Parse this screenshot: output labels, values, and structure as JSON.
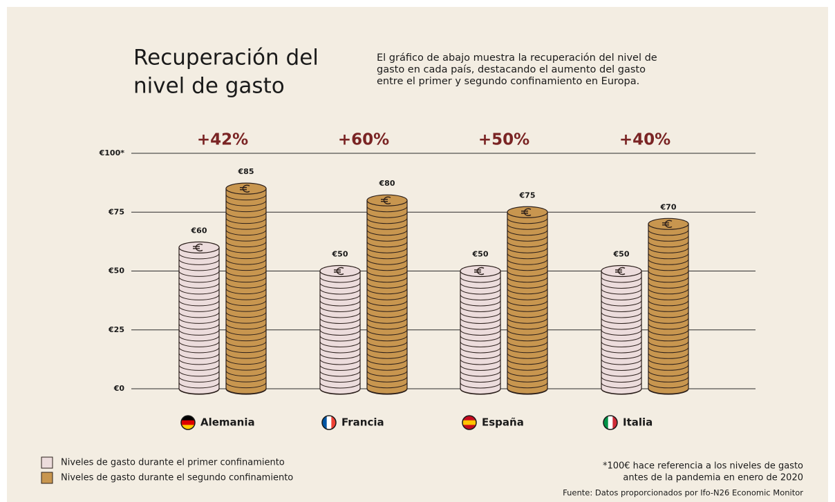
{
  "chart_data": {
    "type": "coin-bar",
    "title": [
      "Recuperación del",
      "nivel de gasto"
    ],
    "subtitle": [
      "El gráfico de abajo muestra la recuperación del nivel de",
      "gasto en cada país, destacando el aumento del gasto",
      "entre el primer y segundo confinamiento en Europa."
    ],
    "categories": [
      "Alemania",
      "Francia",
      "España",
      "Italia"
    ],
    "annotations": [
      "+42%",
      "+60%",
      "+50%",
      "+40%"
    ],
    "series": [
      {
        "name": "Niveles de gasto durante el primer confinamiento",
        "color": "#ecdcdc",
        "values": [
          60,
          50,
          50,
          50
        ],
        "value_labels": [
          "€60",
          "€50",
          "€50",
          "€50"
        ]
      },
      {
        "name": "Niveles de gasto durante el segundo confinamiento",
        "color": "#c8964f",
        "values": [
          85,
          80,
          75,
          70
        ],
        "value_labels": [
          "€85",
          "€80",
          "€75",
          "€70"
        ]
      }
    ],
    "ylim": [
      0,
      100
    ],
    "yticks": [
      {
        "value": 0,
        "label": "€0"
      },
      {
        "value": 25,
        "label": "€25"
      },
      {
        "value": 50,
        "label": "€50"
      },
      {
        "value": 75,
        "label": "€75"
      },
      {
        "value": 100,
        "label": "€100*"
      }
    ],
    "grid": true,
    "footnote": [
      "*100€ hace referencia a los niveles de gasto",
      "antes de la pandemia en enero de 2020"
    ],
    "source": "Fuente: Datos proporcionados por Ifo-N26 Economic Monitor"
  }
}
